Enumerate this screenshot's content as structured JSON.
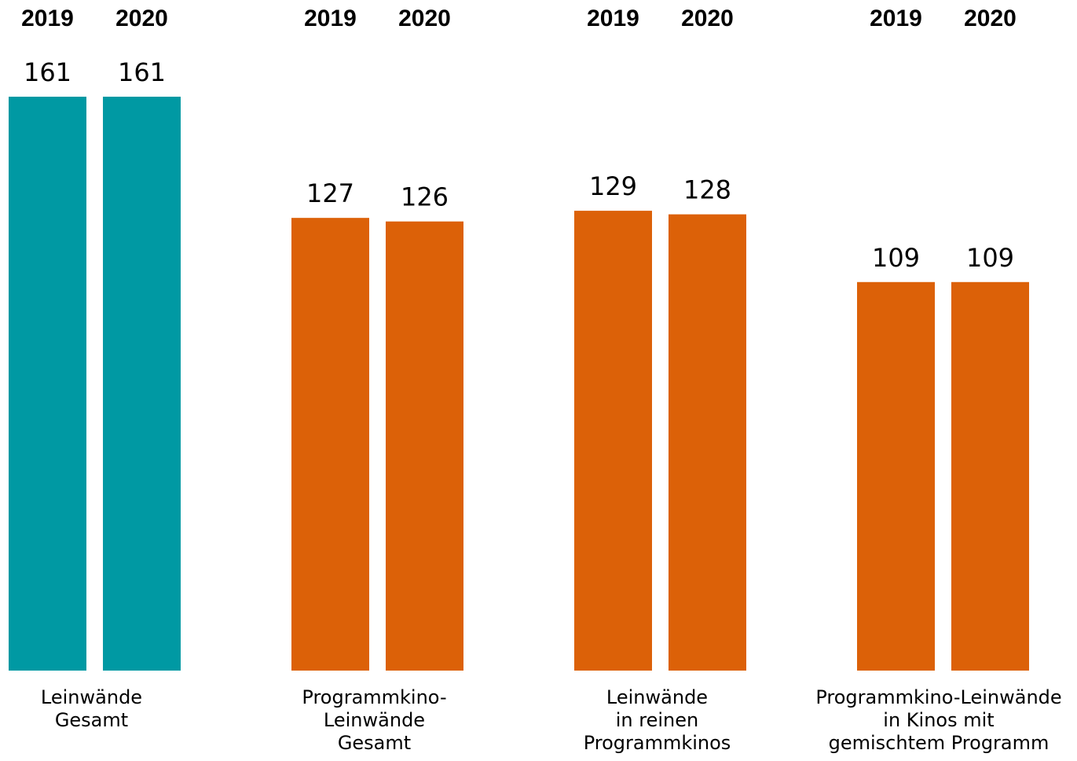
{
  "chart_data": {
    "type": "bar",
    "categories": [
      "Leinwände\nGesamt",
      "Programmkino-\nLeinwände\nGesamt",
      "Leinwände\nin reinen\nProgrammkinos",
      "Programmkino-Leinwände\nin Kinos mit\ngemischtem Programm"
    ],
    "series": [
      {
        "name": "2019",
        "values": [
          161,
          127,
          129,
          109
        ]
      },
      {
        "name": "2020",
        "values": [
          161,
          126,
          128,
          109
        ]
      }
    ],
    "category_colors": [
      "#0099a3",
      "#dc6108",
      "#dc6108",
      "#dc6108"
    ],
    "ylim": [
      0,
      161
    ]
  }
}
